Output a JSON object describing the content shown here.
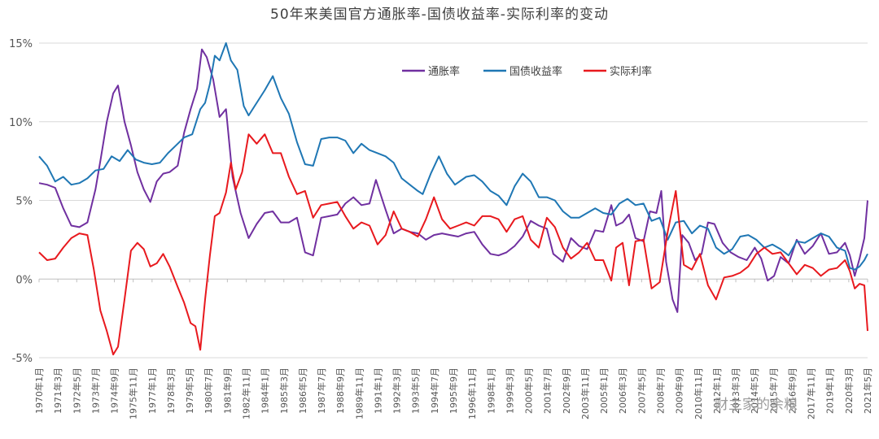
{
  "chart_data": {
    "type": "line",
    "title": "50年来美国官方通胀率-国债收益率-实际利率的变动",
    "xlabel": "",
    "ylabel": "",
    "ylim": [
      -5,
      15
    ],
    "yticks": [
      "15%",
      "10%",
      "5%",
      "0%",
      "-5%"
    ],
    "ytick_values": [
      15,
      10,
      5,
      0,
      -5
    ],
    "grid": true,
    "legend_position": "top-right",
    "x_range": [
      1970.0,
      2021.4
    ],
    "x_tick_labels": [
      "1970年1月",
      "1971年3月",
      "1972年5月",
      "1973年7月",
      "1974年9月",
      "1975年11月",
      "1977年1月",
      "1978年3月",
      "1979年5月",
      "1980年7月",
      "1981年9月",
      "1982年11月",
      "1984年1月",
      "1985年3月",
      "1986年5月",
      "1987年7月",
      "1988年9月",
      "1989年11月",
      "1991年1月",
      "1992年3月",
      "1993年5月",
      "1994年7月",
      "1995年9月",
      "1996年11月",
      "1998年1月",
      "1999年3月",
      "2000年5月",
      "2001年7月",
      "2002年9月",
      "2003年11月",
      "2005年1月",
      "2006年3月",
      "2007年5月",
      "2008年7月",
      "2009年9月",
      "2010年11月",
      "2012年1月",
      "2013年3月",
      "2014年5月",
      "2015年7月",
      "2016年9月",
      "2017年11月",
      "2019年1月",
      "2020年3月",
      "2021年5月"
    ],
    "series": [
      {
        "name": "通胀率",
        "color": "#7030a0",
        "x": [
          1970.0,
          1970.5,
          1971.0,
          1971.5,
          1972.0,
          1972.5,
          1973.0,
          1973.5,
          1973.8,
          1974.2,
          1974.6,
          1974.9,
          1975.3,
          1975.7,
          1976.1,
          1976.5,
          1976.9,
          1977.3,
          1977.7,
          1978.1,
          1978.6,
          1979.0,
          1979.4,
          1979.8,
          1980.1,
          1980.4,
          1980.8,
          1981.2,
          1981.6,
          1982.0,
          1982.5,
          1983.0,
          1983.5,
          1984.0,
          1984.5,
          1985.0,
          1985.5,
          1986.0,
          1986.5,
          1987.0,
          1987.5,
          1988.0,
          1988.5,
          1989.0,
          1989.5,
          1990.0,
          1990.5,
          1990.9,
          1991.5,
          1992.0,
          1992.5,
          1993.0,
          1993.5,
          1994.0,
          1994.5,
          1995.0,
          1995.5,
          1996.0,
          1996.5,
          1997.0,
          1997.5,
          1998.0,
          1998.5,
          1999.0,
          1999.5,
          2000.0,
          2000.5,
          2001.0,
          2001.5,
          2001.9,
          2002.5,
          2003.0,
          2003.5,
          2004.0,
          2004.5,
          2005.0,
          2005.5,
          2005.8,
          2006.2,
          2006.6,
          2007.0,
          2007.5,
          2007.9,
          2008.3,
          2008.6,
          2008.9,
          2009.3,
          2009.6,
          2009.9,
          2010.3,
          2010.7,
          2011.1,
          2011.5,
          2011.9,
          2012.4,
          2012.9,
          2013.4,
          2013.9,
          2014.4,
          2014.8,
          2015.2,
          2015.6,
          2016.0,
          2016.5,
          2017.0,
          2017.5,
          2018.0,
          2018.5,
          2019.0,
          2019.5,
          2020.0,
          2020.3,
          2020.6,
          2020.9,
          2021.2,
          2021.4
        ],
        "values": [
          6.1,
          6.0,
          5.8,
          4.5,
          3.4,
          3.3,
          3.6,
          5.7,
          7.5,
          10.0,
          11.8,
          12.3,
          10.0,
          8.5,
          6.8,
          5.7,
          4.9,
          6.2,
          6.7,
          6.8,
          7.2,
          9.3,
          10.8,
          12.1,
          14.6,
          14.1,
          12.7,
          10.3,
          10.8,
          6.5,
          4.2,
          2.6,
          3.5,
          4.2,
          4.3,
          3.6,
          3.6,
          3.9,
          1.7,
          1.5,
          3.9,
          4.0,
          4.1,
          4.8,
          5.2,
          4.7,
          4.8,
          6.3,
          4.4,
          2.9,
          3.2,
          3.0,
          2.9,
          2.5,
          2.8,
          2.9,
          2.8,
          2.7,
          2.9,
          3.0,
          2.2,
          1.6,
          1.5,
          1.7,
          2.1,
          2.7,
          3.7,
          3.4,
          3.2,
          1.6,
          1.1,
          2.6,
          2.1,
          1.9,
          3.1,
          3.0,
          4.7,
          3.4,
          3.6,
          4.1,
          2.6,
          2.4,
          4.3,
          4.2,
          5.6,
          1.1,
          -1.3,
          -2.1,
          2.8,
          2.3,
          1.2,
          1.6,
          3.6,
          3.5,
          2.3,
          1.7,
          1.4,
          1.2,
          2.0,
          1.3,
          -0.1,
          0.2,
          1.4,
          1.0,
          2.5,
          1.6,
          2.1,
          2.9,
          1.6,
          1.7,
          2.3,
          1.5,
          0.2,
          1.3,
          2.6,
          5.0
        ]
      },
      {
        "name": "国债收益率",
        "color": "#1f77b4",
        "x": [
          1970.0,
          1970.5,
          1971.0,
          1971.5,
          1972.0,
          1972.5,
          1973.0,
          1973.5,
          1974.0,
          1974.5,
          1975.0,
          1975.5,
          1976.0,
          1976.5,
          1977.0,
          1977.5,
          1978.0,
          1978.5,
          1979.0,
          1979.5,
          1980.0,
          1980.3,
          1980.6,
          1980.9,
          1981.2,
          1981.6,
          1981.9,
          1982.3,
          1982.7,
          1983.0,
          1983.5,
          1984.0,
          1984.5,
          1985.0,
          1985.5,
          1986.0,
          1986.5,
          1987.0,
          1987.5,
          1988.0,
          1988.5,
          1989.0,
          1989.5,
          1990.0,
          1990.5,
          1991.0,
          1991.5,
          1992.0,
          1992.5,
          1993.0,
          1993.5,
          1993.8,
          1994.3,
          1994.8,
          1995.3,
          1995.8,
          1996.5,
          1997.0,
          1997.5,
          1998.0,
          1998.5,
          1999.0,
          1999.5,
          2000.0,
          2000.5,
          2001.0,
          2001.5,
          2002.0,
          2002.5,
          2003.0,
          2003.5,
          2004.0,
          2004.5,
          2005.0,
          2005.5,
          2006.0,
          2006.5,
          2007.0,
          2007.5,
          2008.0,
          2008.5,
          2009.0,
          2009.5,
          2010.0,
          2010.5,
          2011.0,
          2011.5,
          2012.0,
          2012.5,
          2013.0,
          2013.5,
          2014.0,
          2014.5,
          2015.0,
          2015.5,
          2016.0,
          2016.5,
          2017.0,
          2017.5,
          2018.0,
          2018.5,
          2019.0,
          2019.5,
          2020.0,
          2020.3,
          2020.6,
          2020.9,
          2021.2,
          2021.4
        ],
        "values": [
          7.8,
          7.2,
          6.2,
          6.5,
          6.0,
          6.1,
          6.4,
          6.9,
          7.0,
          7.8,
          7.5,
          8.2,
          7.6,
          7.4,
          7.3,
          7.4,
          8.0,
          8.5,
          9.0,
          9.2,
          10.8,
          11.2,
          12.4,
          14.2,
          13.9,
          15.0,
          13.9,
          13.3,
          11.0,
          10.4,
          11.2,
          12.0,
          12.9,
          11.5,
          10.5,
          8.7,
          7.3,
          7.2,
          8.9,
          9.0,
          9.0,
          8.8,
          8.0,
          8.6,
          8.2,
          8.0,
          7.8,
          7.4,
          6.4,
          6.0,
          5.6,
          5.4,
          6.7,
          7.8,
          6.7,
          6.0,
          6.5,
          6.6,
          6.2,
          5.6,
          5.3,
          4.7,
          5.9,
          6.7,
          6.2,
          5.2,
          5.2,
          5.0,
          4.3,
          3.9,
          3.9,
          4.2,
          4.5,
          4.2,
          4.1,
          4.8,
          5.1,
          4.7,
          4.8,
          3.7,
          3.9,
          2.5,
          3.6,
          3.7,
          2.9,
          3.4,
          3.2,
          2.0,
          1.6,
          1.9,
          2.7,
          2.8,
          2.5,
          2.0,
          2.2,
          1.9,
          1.5,
          2.4,
          2.3,
          2.6,
          2.9,
          2.7,
          2.0,
          1.8,
          0.7,
          0.6,
          0.8,
          1.2,
          1.6
        ]
      },
      {
        "name": "实际利率",
        "color": "#e8191e",
        "x": [
          1970.0,
          1970.5,
          1971.0,
          1971.5,
          1972.0,
          1972.5,
          1973.0,
          1973.4,
          1973.8,
          1974.2,
          1974.6,
          1974.9,
          1975.3,
          1975.7,
          1976.1,
          1976.5,
          1976.9,
          1977.3,
          1977.7,
          1978.1,
          1978.6,
          1979.0,
          1979.4,
          1979.7,
          1980.0,
          1980.3,
          1980.6,
          1980.9,
          1981.2,
          1981.6,
          1981.9,
          1982.2,
          1982.6,
          1983.0,
          1983.5,
          1984.0,
          1984.5,
          1985.0,
          1985.5,
          1986.0,
          1986.5,
          1987.0,
          1987.5,
          1988.0,
          1988.5,
          1989.0,
          1989.5,
          1990.0,
          1990.5,
          1991.0,
          1991.5,
          1992.0,
          1992.5,
          1993.0,
          1993.5,
          1994.0,
          1994.5,
          1995.0,
          1995.5,
          1996.0,
          1996.5,
          1997.0,
          1997.5,
          1998.0,
          1998.5,
          1999.0,
          1999.5,
          2000.0,
          2000.5,
          2001.0,
          2001.5,
          2002.0,
          2002.5,
          2003.0,
          2003.5,
          2004.0,
          2004.5,
          2005.0,
          2005.5,
          2005.8,
          2006.2,
          2006.6,
          2007.0,
          2007.5,
          2008.0,
          2008.5,
          2009.0,
          2009.5,
          2010.0,
          2010.5,
          2011.0,
          2011.5,
          2012.0,
          2012.5,
          2013.0,
          2013.5,
          2014.0,
          2014.5,
          2015.0,
          2015.5,
          2016.0,
          2016.5,
          2017.0,
          2017.5,
          2018.0,
          2018.5,
          2019.0,
          2019.5,
          2020.0,
          2020.3,
          2020.6,
          2020.9,
          2021.2,
          2021.4
        ],
        "values": [
          1.7,
          1.2,
          1.3,
          2.0,
          2.6,
          2.9,
          2.8,
          0.6,
          -2.0,
          -3.3,
          -4.8,
          -4.3,
          -1.3,
          1.8,
          2.3,
          1.9,
          0.8,
          1.0,
          1.6,
          0.8,
          -0.5,
          -1.5,
          -2.8,
          -3.0,
          -4.5,
          -1.3,
          1.5,
          4.0,
          4.2,
          5.5,
          7.4,
          5.7,
          6.8,
          9.2,
          8.6,
          9.2,
          8.0,
          8.0,
          6.5,
          5.4,
          5.6,
          3.9,
          4.7,
          4.8,
          4.9,
          4.0,
          3.2,
          3.6,
          3.4,
          2.2,
          2.8,
          4.3,
          3.2,
          3.0,
          2.7,
          3.8,
          5.2,
          3.8,
          3.2,
          3.4,
          3.6,
          3.4,
          4.0,
          4.0,
          3.8,
          3.0,
          3.8,
          4.0,
          2.5,
          2.0,
          3.9,
          3.3,
          2.0,
          1.3,
          1.7,
          2.3,
          1.2,
          1.2,
          -0.1,
          2.0,
          2.3,
          -0.4,
          2.4,
          2.5,
          -0.6,
          -0.2,
          3.0,
          5.6,
          0.9,
          0.6,
          1.6,
          -0.4,
          -1.3,
          0.1,
          0.2,
          0.4,
          0.8,
          1.6,
          2.0,
          1.6,
          1.7,
          1.0,
          0.3,
          0.9,
          0.7,
          0.2,
          0.6,
          0.7,
          1.2,
          0.5,
          -0.6,
          -0.3,
          -0.4,
          -3.3
        ]
      }
    ]
  },
  "watermark": "财主家的余粮"
}
